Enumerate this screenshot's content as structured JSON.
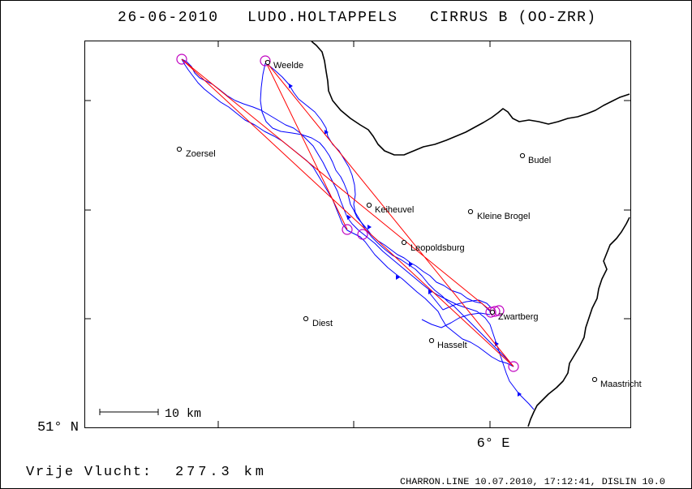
{
  "title": {
    "date": "26-06-2010",
    "pilot": "LUDO.HOLTAPPELS",
    "glider": "CIRRUS B (OO-ZRR)"
  },
  "map": {
    "lat_label": "51° N",
    "lon_label": "6° E",
    "places": [
      {
        "name": "Weelde"
      },
      {
        "name": "Zoersel"
      },
      {
        "name": "Budel"
      },
      {
        "name": "Keiheuvel"
      },
      {
        "name": "Kleine Brogel"
      },
      {
        "name": "Leopoldsburg"
      },
      {
        "name": "Zwartberg"
      },
      {
        "name": "Diest"
      },
      {
        "name": "Hasselt"
      },
      {
        "name": "Maastricht"
      }
    ],
    "scale_bar": {
      "label": "10 km"
    }
  },
  "footer": {
    "flight_type": "Vrije Vlucht:",
    "distance": "277.3 km",
    "credit": "CHARRON.LINE 10.07.2010, 17:12:41, DISLIN 10.0"
  },
  "colors": {
    "track": "#0000ff",
    "task_legs": "#ff0000",
    "turnpoints": "#c000c0",
    "border": "#000000"
  }
}
